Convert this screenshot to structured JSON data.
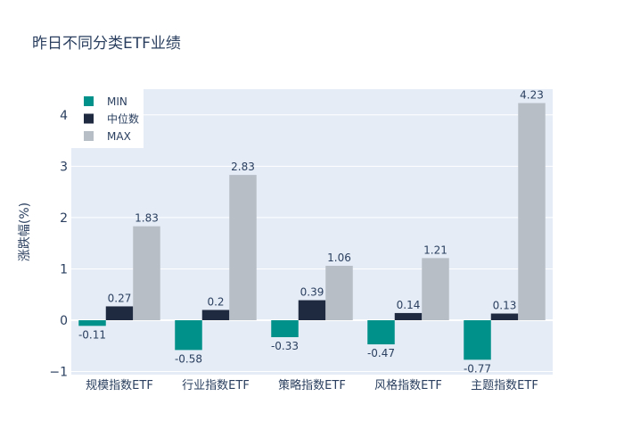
{
  "chart_data": {
    "type": "bar",
    "title": "昨日不同分类ETF业绩",
    "xlabel": "",
    "ylabel": "涨跌幅(%)",
    "ylim": [
      -1.06,
      4.5
    ],
    "yticks": [
      -1,
      0,
      1,
      2,
      3,
      4
    ],
    "ytick_labels": [
      "−1",
      "0",
      "1",
      "2",
      "3",
      "4"
    ],
    "grid": true,
    "legend_position": "top-left",
    "categories": [
      "规模指数ETF",
      "行业指数ETF",
      "策略指数ETF",
      "风格指数ETF",
      "主题指数ETF"
    ],
    "series": [
      {
        "name": "MIN",
        "color": "#00918a",
        "values": [
          -0.11,
          -0.58,
          -0.33,
          -0.47,
          -0.77
        ]
      },
      {
        "name": "中位数",
        "color": "#1f2a40",
        "values": [
          0.27,
          0.2,
          0.39,
          0.14,
          0.13
        ]
      },
      {
        "name": "MAX",
        "color": "#b8bec6",
        "values": [
          1.83,
          2.83,
          1.06,
          1.21,
          4.23
        ]
      }
    ]
  }
}
